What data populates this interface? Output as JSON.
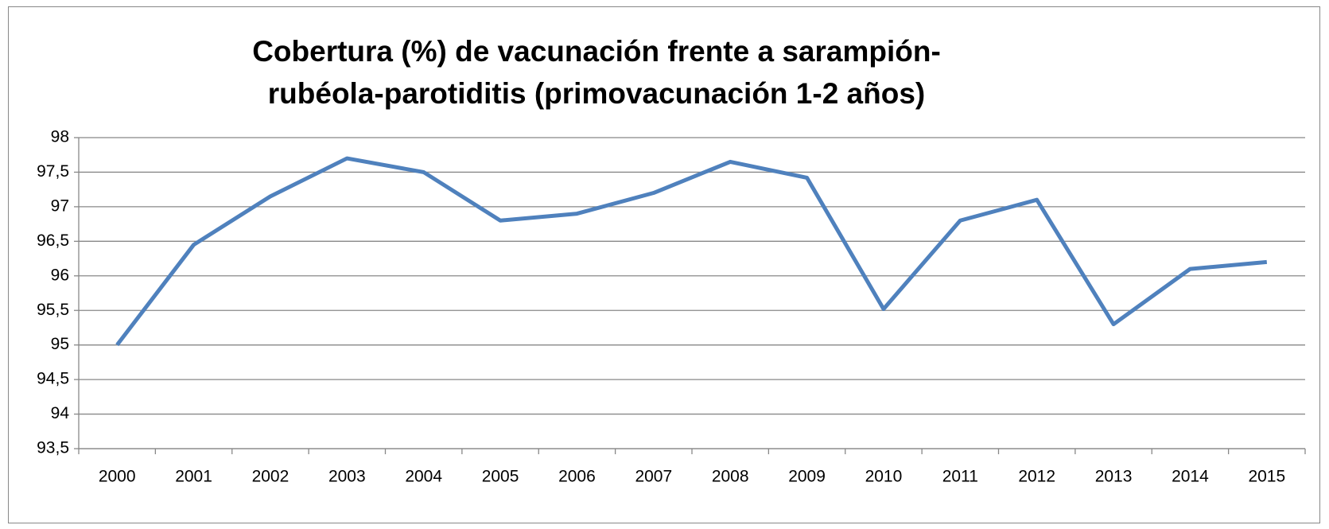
{
  "chart_data": {
    "type": "line",
    "title": "Cobertura (%) de vacunación frente a sarampión-rubéola-parotiditis (primovacunación 1-2 años)",
    "categories": [
      "2000",
      "2001",
      "2002",
      "2003",
      "2004",
      "2005",
      "2006",
      "2007",
      "2008",
      "2009",
      "2010",
      "2011",
      "2012",
      "2013",
      "2014",
      "2015"
    ],
    "series": [
      {
        "name": "Cobertura",
        "color": "#4f81bd",
        "values": [
          95,
          96.45,
          97.15,
          97.7,
          97.5,
          96.8,
          96.9,
          97.2,
          97.65,
          97.42,
          95.52,
          96.8,
          97.1,
          95.3,
          96.1,
          96.2
        ]
      }
    ],
    "ylim": [
      93.5,
      98
    ],
    "yticks": [
      {
        "value": 93.5,
        "label": "93,5"
      },
      94,
      {
        "value": 94.5,
        "label": "94,5"
      },
      95,
      {
        "value": 95.5,
        "label": "95,5"
      },
      96,
      {
        "value": 96.5,
        "label": "96,5"
      },
      97,
      {
        "value": 97.5,
        "label": "97,5"
      },
      98
    ],
    "grid": true,
    "legend": false
  }
}
